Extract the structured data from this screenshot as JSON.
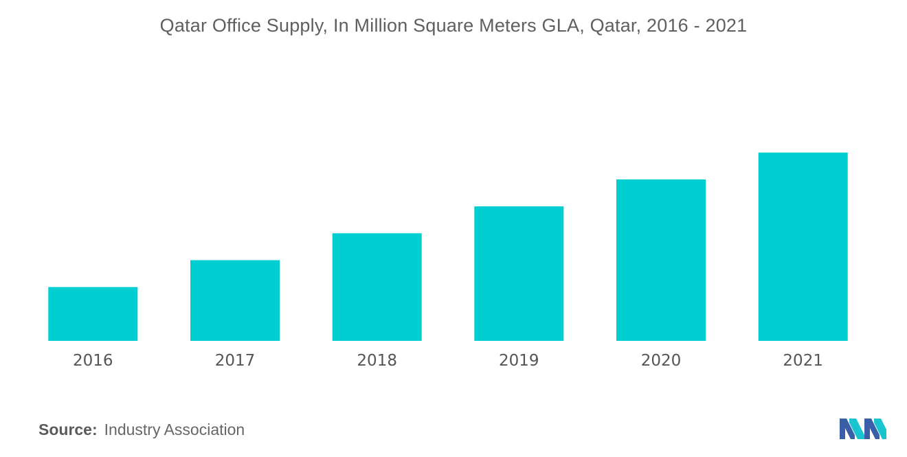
{
  "chart_data": {
    "type": "bar",
    "title": "Qatar Office Supply, In Million Square Meters GLA, Qatar, 2016 - 2021",
    "categories": [
      "2016",
      "2017",
      "2018",
      "2019",
      "2020",
      "2021"
    ],
    "values": [
      2.0,
      3.0,
      4.0,
      5.0,
      6.0,
      7.0
    ],
    "ylim": [
      0,
      7.0
    ],
    "grid": false,
    "legend": "none",
    "y_axis_labels_shown": false,
    "bar_color": "#00CED1"
  },
  "footer": {
    "source_label": "Source:",
    "source_text": "Industry Association"
  },
  "logo": {
    "icon": "mordor-intelligence-logo",
    "colors": [
      "#3a5fa8",
      "#19c4d0"
    ]
  }
}
